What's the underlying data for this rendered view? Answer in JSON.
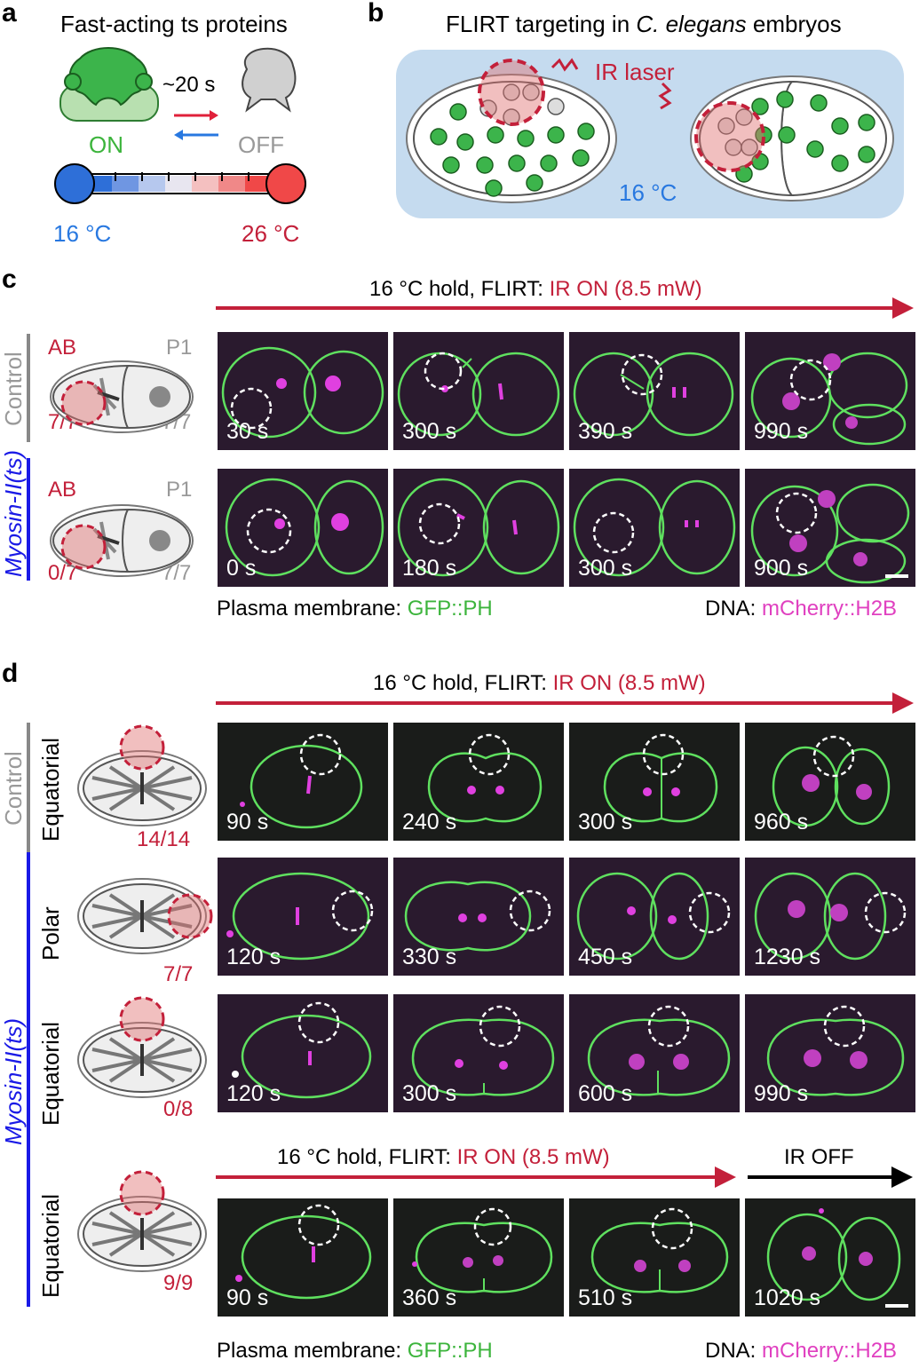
{
  "panel_a": {
    "letter": "a",
    "title": "Fast-acting ts proteins",
    "time_label": "~20 s",
    "on_label": "ON",
    "off_label": "OFF",
    "temp_low": "16 °C",
    "temp_high": "26 °C"
  },
  "panel_b": {
    "letter": "b",
    "title_prefix": "FLIRT targeting in ",
    "title_species": "C. elegans",
    "title_suffix": " embryos",
    "laser_label": "IR laser",
    "temp_label": "16 °C"
  },
  "panel_c": {
    "letter": "c",
    "header_prefix": "16 °C hold, FLIRT: ",
    "header_ir": "IR ON (8.5 mW)",
    "rows": [
      {
        "group": "Control",
        "ab": "AB",
        "p1": "P1",
        "ab_count": "7/7",
        "p1_count": "7/7",
        "times": [
          "30 s",
          "300 s",
          "390 s",
          "990 s"
        ]
      },
      {
        "group": "Myosin-II(ts)",
        "ab": "AB",
        "p1": "P1",
        "ab_count": "0/7",
        "p1_count": "7/7",
        "times": [
          "0 s",
          "180 s",
          "300 s",
          "900 s"
        ]
      }
    ],
    "legend_membrane_prefix": "Plasma membrane: ",
    "legend_membrane_marker": "GFP::PH",
    "legend_dna_prefix": "DNA: ",
    "legend_dna_marker": "mCherry::H2B"
  },
  "panel_d": {
    "letter": "d",
    "header_prefix": "16 °C hold, FLIRT: ",
    "header_ir": "IR ON (8.5 mW)",
    "control_group": "Control",
    "myosin_group": "Myosin-II(ts)",
    "rows": [
      {
        "site": "Equatorial",
        "count": "14/14",
        "times": [
          "90 s",
          "240 s",
          "300 s",
          "960 s"
        ]
      },
      {
        "site": "Polar",
        "count": "7/7",
        "times": [
          "120 s",
          "330 s",
          "450 s",
          "1230 s"
        ]
      },
      {
        "site": "Equatorial",
        "count": "0/8",
        "times": [
          "120 s",
          "300 s",
          "600 s",
          "990 s"
        ]
      },
      {
        "site": "Equatorial",
        "count": "9/9",
        "times": [
          "90 s",
          "360 s",
          "510 s",
          "1020 s"
        ]
      }
    ],
    "sub_header_prefix": "16 °C hold, FLIRT: ",
    "sub_header_ir": "IR ON (8.5 mW)",
    "ir_off": "IR OFF",
    "legend_membrane_prefix": "Plasma membrane: ",
    "legend_membrane_marker": "GFP::PH",
    "legend_dna_prefix": "DNA: ",
    "legend_dna_marker": "mCherry::H2B"
  }
}
